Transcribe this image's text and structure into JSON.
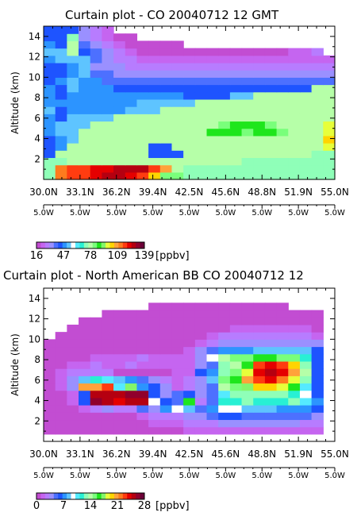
{
  "colorbar_colors": [
    "#c24dd2",
    "#c565f0",
    "#b77cff",
    "#9a90ff",
    "#4d70ff",
    "#1e54ff",
    "#2c94ff",
    "#5ec4ff",
    "#ffffff",
    "#55eaff",
    "#28f0d4",
    "#8fffb8",
    "#b6ffa8",
    "#79ff7b",
    "#1ee61c",
    "#84f56b",
    "#e7ff3a",
    "#ffd400",
    "#ffa23a",
    "#ff7b1e",
    "#ff3c10",
    "#e50000",
    "#b50010",
    "#90002c",
    "#6a0038"
  ],
  "chart_data": [
    {
      "type": "heatmap",
      "title": "Curtain plot - CO 20040712 12 GMT",
      "ylabel": "Altitude (km)",
      "xlabel": "",
      "ylim": [
        0,
        15
      ],
      "yticks": [
        2,
        4,
        6,
        8,
        10,
        12,
        14
      ],
      "x_ticks_lat": [
        "30.0N",
        "33.1N",
        "36.2N",
        "39.4N",
        "42.5N",
        "45.6N",
        "48.8N",
        "51.9N",
        "55.0N"
      ],
      "x_ticks_lon": [
        "5.0W",
        "5.0W",
        "5.0W",
        "5.0W",
        "5.0W",
        "5.0W",
        "5.0W",
        "5.0W",
        "5.0W"
      ],
      "colorbar": {
        "min": 16,
        "max": 139,
        "labels": [
          "16",
          "47",
          "78",
          "109",
          "139"
        ],
        "unit": "[ppbv]"
      },
      "levels_bottom_up": [
        [
          11,
          19,
          20,
          20,
          21,
          22,
          22,
          21,
          20,
          17,
          13,
          13,
          11,
          11,
          11,
          11,
          11,
          11,
          11,
          11,
          11,
          11,
          11,
          11,
          11
        ],
        [
          11,
          19,
          20,
          20,
          21,
          21,
          22,
          22,
          22,
          20,
          18,
          12,
          11,
          11,
          11,
          11,
          11,
          11,
          11,
          11,
          11,
          11,
          11,
          11,
          11
        ],
        [
          11,
          11,
          12,
          12,
          12,
          12,
          12,
          12,
          12,
          12,
          12,
          12,
          12,
          12,
          12,
          12,
          12,
          11,
          11,
          11,
          11,
          11,
          11,
          11,
          11
        ],
        [
          5,
          12,
          12,
          12,
          12,
          12,
          12,
          12,
          12,
          5,
          5,
          5,
          12,
          12,
          12,
          12,
          12,
          12,
          12,
          12,
          12,
          12,
          12,
          11,
          11
        ],
        [
          5,
          6,
          12,
          12,
          12,
          12,
          12,
          12,
          12,
          5,
          5,
          12,
          12,
          12,
          12,
          12,
          12,
          12,
          12,
          12,
          12,
          12,
          12,
          12,
          16
        ],
        [
          5,
          6,
          7,
          12,
          12,
          12,
          12,
          12,
          12,
          12,
          12,
          12,
          12,
          12,
          12,
          12,
          12,
          12,
          12,
          12,
          12,
          12,
          12,
          12,
          17
        ],
        [
          6,
          7,
          7,
          12,
          12,
          12,
          12,
          12,
          12,
          12,
          12,
          12,
          12,
          12,
          14,
          14,
          14,
          13,
          14,
          14,
          13,
          12,
          12,
          12,
          16
        ],
        [
          6,
          7,
          7,
          7,
          12,
          12,
          12,
          12,
          12,
          12,
          12,
          12,
          12,
          12,
          12,
          13,
          14,
          14,
          14,
          13,
          12,
          12,
          12,
          12,
          16
        ],
        [
          6,
          5,
          7,
          7,
          7,
          7,
          12,
          12,
          12,
          12,
          12,
          12,
          12,
          12,
          12,
          12,
          12,
          12,
          12,
          12,
          12,
          12,
          12,
          12,
          12
        ],
        [
          7,
          5,
          6,
          6,
          6,
          6,
          6,
          7,
          7,
          7,
          12,
          12,
          12,
          12,
          12,
          12,
          12,
          12,
          12,
          12,
          12,
          12,
          12,
          12,
          12
        ],
        [
          6,
          6,
          6,
          6,
          6,
          6,
          6,
          6,
          7,
          7,
          7,
          7,
          7,
          12,
          12,
          12,
          12,
          12,
          12,
          12,
          12,
          12,
          12,
          12,
          12
        ],
        [
          6,
          5,
          6,
          6,
          6,
          6,
          6,
          6,
          6,
          6,
          6,
          6,
          5,
          5,
          5,
          5,
          7,
          7,
          12,
          12,
          12,
          12,
          12,
          12,
          12
        ],
        [
          6,
          5,
          7,
          6,
          6,
          6,
          5,
          5,
          5,
          5,
          5,
          5,
          5,
          5,
          5,
          5,
          5,
          5,
          5,
          5,
          5,
          5,
          5,
          12,
          12
        ],
        [
          5,
          6,
          7,
          6,
          6,
          4,
          4,
          4,
          4,
          4,
          4,
          4,
          4,
          4,
          4,
          4,
          4,
          4,
          4,
          4,
          4,
          4,
          4,
          4,
          4
        ],
        [
          5,
          5,
          6,
          7,
          4,
          4,
          3,
          3,
          3,
          3,
          3,
          3,
          3,
          3,
          3,
          3,
          3,
          3,
          3,
          3,
          3,
          3,
          3,
          3,
          3
        ],
        [
          5,
          5,
          6,
          7,
          3,
          3,
          3,
          2,
          2,
          2,
          2,
          2,
          2,
          2,
          2,
          2,
          2,
          2,
          2,
          2,
          2,
          2,
          2,
          2,
          2
        ],
        [
          6,
          7,
          7,
          7,
          4,
          3,
          2,
          2,
          1,
          1,
          1,
          1,
          1,
          1,
          1,
          1,
          1,
          1,
          1,
          1,
          1,
          1,
          1,
          1,
          1
        ],
        [
          7,
          7,
          12,
          5,
          4,
          3,
          2,
          1,
          0,
          0,
          0,
          0,
          0,
          0,
          0,
          0,
          0,
          0,
          0,
          0,
          0,
          1,
          1,
          2,
          -1
        ],
        [
          6,
          5,
          12,
          4,
          3,
          2,
          1,
          0,
          0,
          0,
          0,
          0,
          -1,
          -1,
          -1,
          -1,
          -1,
          -1,
          -1,
          -1,
          -1,
          -1,
          -1,
          -1,
          -1
        ],
        [
          5,
          5,
          11,
          3,
          2,
          1,
          0,
          0,
          -1,
          -1,
          -1,
          -1,
          -1,
          -1,
          -1,
          -1,
          -1,
          -1,
          -1,
          -1,
          -1,
          -1,
          -1,
          -1,
          -1
        ],
        [
          5,
          5,
          5,
          3,
          2,
          1,
          -1,
          -1,
          -1,
          -1,
          -1,
          -1,
          -1,
          -1,
          -1,
          -1,
          -1,
          -1,
          -1,
          -1,
          -1,
          -1,
          -1,
          -1,
          -1
        ]
      ]
    },
    {
      "type": "heatmap",
      "title": "Curtain plot - North American BB CO 20040712 12",
      "ylabel": "Altitude (km)",
      "xlabel": "",
      "ylim": [
        0,
        15
      ],
      "yticks": [
        2,
        4,
        6,
        8,
        10,
        12,
        14
      ],
      "x_ticks_lat": [
        "30.0N",
        "33.1N",
        "36.2N",
        "39.4N",
        "42.5N",
        "45.6N",
        "48.8N",
        "51.9N",
        "55.0N"
      ],
      "x_ticks_lon": [
        "5.0W",
        "5.0W",
        "5.0W",
        "5.0W",
        "5.0W",
        "5.0W",
        "5.0W",
        "5.0W",
        "5.0W"
      ],
      "colorbar": {
        "min": 0,
        "max": 28,
        "labels": [
          "0",
          "7",
          "14",
          "21",
          "28"
        ],
        "unit": "[ppbv]"
      },
      "levels_bottom_up": [
        [
          -1,
          -1,
          -1,
          -1,
          -1,
          -1,
          -1,
          -1,
          -1,
          -1,
          -1,
          -1,
          -1,
          -1,
          -1,
          -1,
          -1,
          -1,
          -1,
          -1,
          -1,
          -1,
          -1,
          -1,
          -1
        ],
        [
          0,
          0,
          0,
          0,
          0,
          0,
          0,
          0,
          0,
          0,
          0,
          0,
          1,
          1,
          1,
          1,
          1,
          1,
          1,
          1,
          1,
          1,
          1,
          1,
          -1
        ],
        [
          0,
          0,
          0,
          0,
          0,
          0,
          0,
          0,
          0,
          1,
          1,
          1,
          2,
          2,
          2,
          3,
          3,
          3,
          3,
          3,
          3,
          3,
          2,
          2,
          -1
        ],
        [
          0,
          0,
          0,
          0,
          0,
          0,
          0,
          0,
          1,
          2,
          2,
          2,
          3,
          3,
          4,
          5,
          5,
          4,
          4,
          4,
          4,
          4,
          4,
          3,
          -1
        ],
        [
          0,
          0,
          0,
          1,
          2,
          3,
          2,
          2,
          4,
          3,
          6,
          8,
          7,
          4,
          6,
          8,
          8,
          7,
          7,
          7,
          6,
          6,
          6,
          5,
          -1
        ],
        [
          0,
          0,
          1,
          5,
          23,
          22,
          21,
          22,
          22,
          8,
          5,
          4,
          14,
          2,
          4,
          10,
          10,
          11,
          10,
          10,
          10,
          11,
          9,
          6,
          -1
        ],
        [
          0,
          0,
          1,
          5,
          22,
          22,
          22,
          23,
          23,
          5,
          3,
          4,
          5,
          3,
          4,
          9,
          11,
          11,
          11,
          11,
          11,
          10,
          8,
          5,
          -1
        ],
        [
          0,
          1,
          3,
          18,
          18,
          20,
          9,
          15,
          6,
          5,
          3,
          1,
          2,
          3,
          4,
          12,
          13,
          15,
          17,
          17,
          16,
          14,
          9,
          5,
          -1
        ],
        [
          0,
          1,
          3,
          7,
          10,
          9,
          7,
          6,
          4,
          3,
          2,
          1,
          2,
          3,
          7,
          13,
          14,
          18,
          20,
          21,
          19,
          16,
          11,
          5,
          -1
        ],
        [
          0,
          1,
          2,
          2,
          2,
          2,
          0,
          0,
          0,
          0,
          0,
          1,
          1,
          5,
          6,
          11,
          13,
          16,
          21,
          22,
          21,
          18,
          12,
          5,
          -1
        ],
        [
          0,
          0,
          1,
          1,
          2,
          1,
          1,
          2,
          1,
          1,
          1,
          1,
          1,
          3,
          4,
          11,
          12,
          14,
          20,
          21,
          20,
          17,
          11,
          5,
          -1
        ],
        [
          0,
          0,
          0,
          0,
          1,
          1,
          1,
          1,
          2,
          1,
          1,
          1,
          1,
          3,
          8,
          12,
          13,
          13,
          14,
          14,
          13,
          13,
          10,
          5,
          -1
        ],
        [
          0,
          0,
          0,
          0,
          0,
          0,
          0,
          0,
          0,
          0,
          0,
          0,
          1,
          3,
          4,
          6,
          6,
          6,
          7,
          7,
          7,
          7,
          7,
          5,
          -1
        ],
        [
          0,
          0,
          0,
          0,
          0,
          0,
          0,
          0,
          0,
          0,
          0,
          0,
          0,
          1,
          2,
          3,
          3,
          3,
          3,
          3,
          3,
          3,
          3,
          3,
          -1
        ],
        [
          -1,
          0,
          0,
          0,
          0,
          0,
          0,
          0,
          0,
          0,
          0,
          0,
          0,
          0,
          1,
          2,
          2,
          2,
          2,
          2,
          2,
          2,
          2,
          1,
          -1
        ],
        [
          -1,
          -1,
          0,
          0,
          0,
          0,
          0,
          0,
          0,
          0,
          0,
          0,
          0,
          0,
          0,
          0,
          1,
          1,
          1,
          1,
          1,
          1,
          1,
          0,
          -1
        ],
        [
          -1,
          -1,
          -1,
          0,
          0,
          0,
          0,
          0,
          0,
          0,
          0,
          0,
          0,
          0,
          0,
          0,
          0,
          0,
          0,
          0,
          0,
          0,
          0,
          0,
          -1
        ],
        [
          -1,
          -1,
          -1,
          -1,
          -1,
          0,
          0,
          0,
          0,
          0,
          0,
          0,
          0,
          0,
          0,
          0,
          0,
          0,
          0,
          0,
          0,
          0,
          0,
          0,
          -1
        ],
        [
          -1,
          -1,
          -1,
          -1,
          -1,
          -1,
          -1,
          -1,
          -1,
          0,
          0,
          0,
          0,
          0,
          0,
          0,
          0,
          0,
          0,
          0,
          0,
          -1,
          -1,
          -1,
          -1
        ],
        [
          -1,
          -1,
          -1,
          -1,
          -1,
          -1,
          -1,
          -1,
          -1,
          -1,
          -1,
          -1,
          -1,
          -1,
          -1,
          -1,
          -1,
          -1,
          -1,
          -1,
          -1,
          -1,
          -1,
          -1,
          -1
        ],
        [
          -1,
          -1,
          -1,
          -1,
          -1,
          -1,
          -1,
          -1,
          -1,
          -1,
          -1,
          -1,
          -1,
          -1,
          -1,
          -1,
          -1,
          -1,
          -1,
          -1,
          -1,
          -1,
          -1,
          -1,
          -1
        ]
      ]
    }
  ]
}
